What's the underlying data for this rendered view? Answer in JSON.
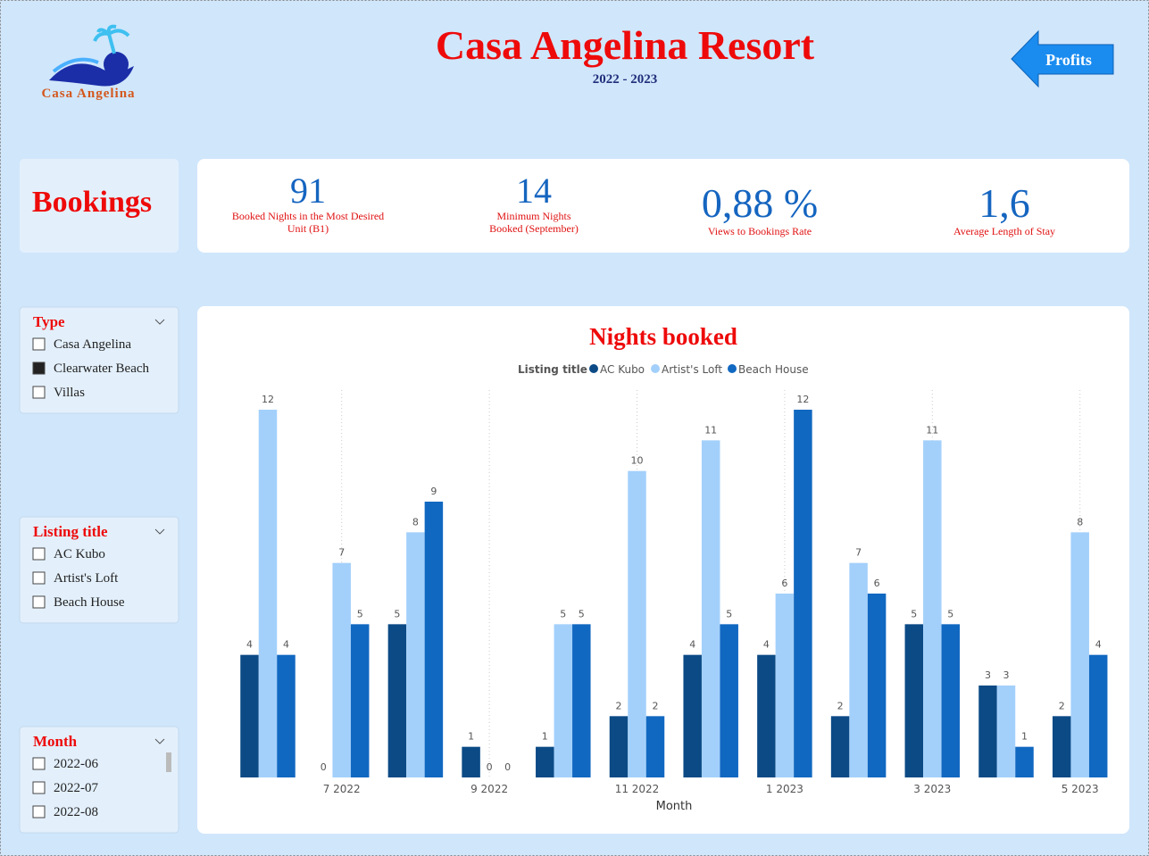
{
  "header": {
    "logo_text": "Casa Angelina",
    "title": "Casa Angelina Resort",
    "subtitle": "2022 - 2023",
    "nav_button": "Profits"
  },
  "page_label": "Bookings",
  "kpis": [
    {
      "value": "91",
      "label": "Booked Nights in the Most Desired Unit (B1)"
    },
    {
      "value": "14",
      "label": "Minimum Nights Booked (September)"
    },
    {
      "value": "0,88 %",
      "label": "Views to Bookings Rate"
    },
    {
      "value": "1,6",
      "label": "Average Length of Stay"
    }
  ],
  "slicers": [
    {
      "title": "Type",
      "items": [
        {
          "label": "Casa Angelina",
          "checked": false
        },
        {
          "label": "Clearwater Beach",
          "checked": true
        },
        {
          "label": "Villas",
          "checked": false
        }
      ]
    },
    {
      "title": "Listing title",
      "items": [
        {
          "label": "AC Kubo",
          "checked": false
        },
        {
          "label": "Artist's Loft",
          "checked": false
        },
        {
          "label": "Beach House",
          "checked": false
        }
      ]
    },
    {
      "title": "Month",
      "items": [
        {
          "label": "2022-06",
          "checked": false
        },
        {
          "label": "2022-07",
          "checked": false
        },
        {
          "label": "2022-08",
          "checked": false
        }
      ]
    }
  ],
  "chart_data": {
    "type": "bar",
    "title": "Nights booked",
    "legend_title": "Listing title",
    "x_label": "Month",
    "categories": [
      null,
      "7 2022",
      null,
      "9 2022",
      null,
      "11 2022",
      null,
      "1 2023",
      null,
      "3 2023",
      null,
      "5 2023"
    ],
    "series": [
      {
        "name": "AC Kubo",
        "color": "#0b4a85",
        "values": [
          4,
          0,
          5,
          1,
          1,
          2,
          4,
          4,
          2,
          5,
          3,
          2
        ]
      },
      {
        "name": "Artist's Loft",
        "color": "#a3d0fb",
        "values": [
          12,
          7,
          8,
          0,
          5,
          10,
          11,
          6,
          7,
          11,
          3,
          8
        ]
      },
      {
        "name": "Beach House",
        "color": "#1168c1",
        "values": [
          4,
          5,
          9,
          0,
          5,
          2,
          5,
          12,
          6,
          5,
          1,
          4
        ]
      }
    ]
  }
}
